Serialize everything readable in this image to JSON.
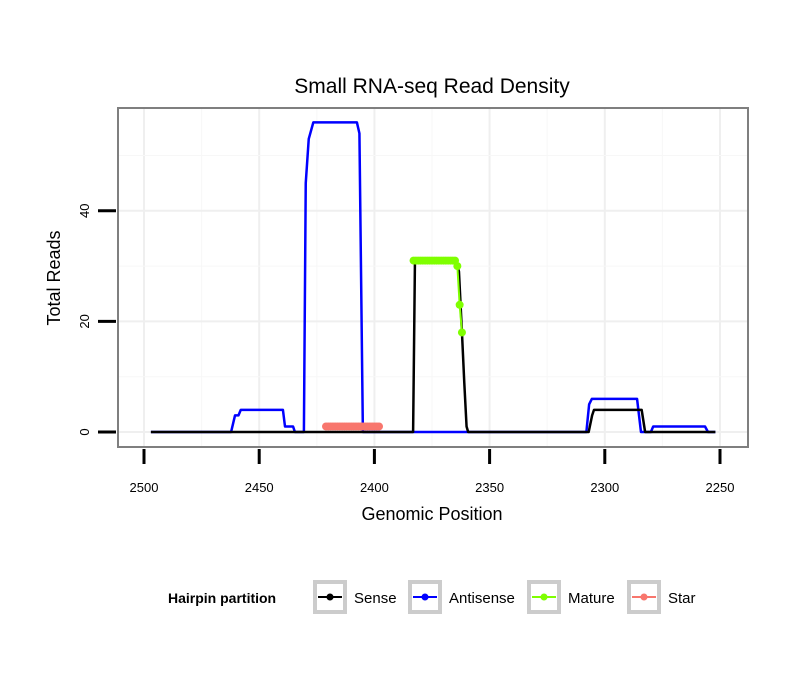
{
  "chart_data": {
    "type": "line",
    "title": "Small RNA-seq Read Density",
    "xlabel": "Genomic Position",
    "ylabel": "Total Reads",
    "xlim": [
      2502,
      2248
    ],
    "x_reversed": true,
    "ylim": [
      -3,
      59
    ],
    "x_ticks": [
      2500,
      2450,
      2400,
      2350,
      2300,
      2250
    ],
    "x_tick_labels": [
      "2500",
      "2450",
      "2400",
      "2350",
      "2300",
      "2250"
    ],
    "y_ticks": [
      0,
      20,
      40
    ],
    "y_tick_labels": [
      "0",
      "20",
      "40"
    ],
    "grid": true,
    "legend": {
      "title": "Hairpin partition",
      "placement": "bottom",
      "entries": [
        "Sense",
        "Antisense",
        "Mature",
        "Star"
      ]
    },
    "series": [
      {
        "name": "Sense",
        "color": "#000000",
        "kind": "line",
        "points": [
          [
            2497,
            0
          ],
          [
            2383.2,
            0
          ],
          [
            2382.4,
            31
          ],
          [
            2364.6,
            31
          ],
          [
            2363.3,
            29
          ],
          [
            2362,
            18
          ],
          [
            2361,
            9
          ],
          [
            2360,
            1
          ],
          [
            2359.3,
            0
          ],
          [
            2307,
            0
          ],
          [
            2305.5,
            3
          ],
          [
            2304.7,
            4
          ],
          [
            2284,
            4
          ],
          [
            2282.5,
            0
          ],
          [
            2252,
            0
          ]
        ]
      },
      {
        "name": "Antisense",
        "color": "#0000FF",
        "kind": "line",
        "points": [
          [
            2497,
            0
          ],
          [
            2462.2,
            0
          ],
          [
            2460.5,
            3
          ],
          [
            2459,
            3
          ],
          [
            2458,
            4
          ],
          [
            2439.7,
            4
          ],
          [
            2438.8,
            1
          ],
          [
            2435.3,
            1
          ],
          [
            2434.5,
            0
          ],
          [
            2430.6,
            0
          ],
          [
            2429.8,
            45
          ],
          [
            2428.5,
            53
          ],
          [
            2426.5,
            56
          ],
          [
            2407.6,
            56
          ],
          [
            2406.5,
            54
          ],
          [
            2405,
            0
          ],
          [
            2308,
            0
          ],
          [
            2306.8,
            5
          ],
          [
            2305.6,
            6
          ],
          [
            2286,
            6
          ],
          [
            2284.3,
            0
          ],
          [
            2280,
            0
          ],
          [
            2279,
            1
          ],
          [
            2256.5,
            1
          ],
          [
            2255.2,
            0
          ],
          [
            2252,
            0
          ]
        ]
      },
      {
        "name": "Mature",
        "color": "#7FFF00",
        "kind": "points",
        "points": [
          [
            2383,
            31
          ],
          [
            2382,
            31
          ],
          [
            2381,
            31
          ],
          [
            2380,
            31
          ],
          [
            2379,
            31
          ],
          [
            2378,
            31
          ],
          [
            2377,
            31
          ],
          [
            2376,
            31
          ],
          [
            2375,
            31
          ],
          [
            2374,
            31
          ],
          [
            2373,
            31
          ],
          [
            2372,
            31
          ],
          [
            2371,
            31
          ],
          [
            2370,
            31
          ],
          [
            2369,
            31
          ],
          [
            2368,
            31
          ],
          [
            2367,
            31
          ],
          [
            2366,
            31
          ],
          [
            2365,
            31
          ],
          [
            2364,
            30
          ],
          [
            2363,
            23
          ],
          [
            2362,
            18
          ]
        ]
      },
      {
        "name": "Star",
        "color": "#F8766D",
        "kind": "points",
        "points": [
          [
            2421,
            1
          ],
          [
            2420,
            1
          ],
          [
            2419,
            1
          ],
          [
            2418,
            1
          ],
          [
            2417,
            1
          ],
          [
            2416,
            1
          ],
          [
            2415,
            1
          ],
          [
            2414,
            1
          ],
          [
            2413,
            1
          ],
          [
            2412,
            1
          ],
          [
            2411,
            1
          ],
          [
            2410,
            1
          ],
          [
            2409,
            1
          ],
          [
            2408,
            1
          ],
          [
            2407,
            1
          ],
          [
            2406,
            1
          ],
          [
            2405,
            1
          ],
          [
            2404,
            1
          ],
          [
            2403,
            1
          ],
          [
            2402,
            1
          ],
          [
            2401,
            1
          ],
          [
            2400,
            1
          ],
          [
            2399,
            1
          ],
          [
            2398,
            1
          ]
        ]
      }
    ]
  }
}
